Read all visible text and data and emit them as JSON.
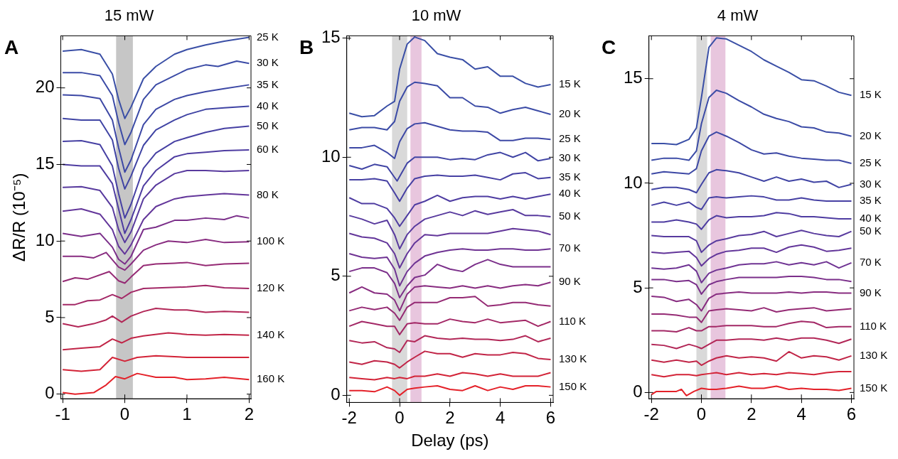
{
  "chart_data": [
    {
      "type": "line",
      "title": "15 mW",
      "ylabel": "ΔR/R (10⁻⁵)",
      "annotations": [
        "A"
      ],
      "xlim": [
        -1.03,
        2.03
      ],
      "ylim": [
        -0.3,
        23.4
      ],
      "xticks": [
        -1,
        0,
        1,
        2
      ],
      "yticks": [
        0,
        5,
        10,
        15,
        20
      ],
      "bands": [
        {
          "axis": "x",
          "from": -0.14,
          "to": 0.13,
          "color": "#a0a0a0"
        }
      ],
      "x": [
        -1,
        -0.7,
        -0.4,
        -0.2,
        -0.1,
        0,
        0.1,
        0.3,
        0.5,
        0.8,
        1,
        1.3,
        1.6,
        2
      ],
      "series": [
        {
          "name": "25 K",
          "color": "#3a4fa6",
          "values": [
            22.4,
            22.5,
            22.2,
            20.9,
            19.25,
            18.0,
            18.75,
            20.6,
            21.4,
            22.2,
            22.5,
            22.8,
            23.05,
            23.3
          ]
        },
        {
          "name": "30 K",
          "color": "#3b4ba6",
          "x": [
            -1,
            -0.7,
            -0.4,
            -0.2,
            -0.1,
            0,
            0.1,
            0.3,
            0.5,
            0.8,
            1,
            1.3,
            1.5,
            1.8,
            2
          ],
          "values": [
            21.0,
            21.0,
            20.8,
            19.5,
            17.75,
            16.3,
            17.1,
            19.25,
            20.2,
            20.8,
            21.2,
            21.5,
            21.4,
            21.75,
            21.6
          ]
        },
        {
          "name": "35 K",
          "color": "#3d48a5",
          "values": [
            19.55,
            19.5,
            19.3,
            17.9,
            16.1,
            14.5,
            15.3,
            17.6,
            18.6,
            19.25,
            19.5,
            19.75,
            19.95,
            20.2
          ]
        },
        {
          "name": "40 K",
          "color": "#4044a4",
          "values": [
            18.0,
            17.9,
            17.9,
            16.6,
            14.75,
            13.4,
            14.25,
            16.25,
            17.25,
            17.9,
            18.25,
            18.6,
            18.7,
            18.8
          ]
        },
        {
          "name": "50 K",
          "color": "#4640a3",
          "values": [
            16.5,
            16.55,
            16.3,
            14.9,
            13.1,
            11.5,
            12.4,
            14.75,
            15.75,
            16.5,
            16.75,
            17.1,
            17.35,
            17.5
          ]
        },
        {
          "name": "60 K",
          "color": "#4e3ca1",
          "values": [
            15.0,
            14.9,
            14.9,
            13.75,
            12.1,
            10.5,
            11.4,
            13.6,
            14.6,
            15.5,
            15.7,
            15.8,
            15.9,
            15.95
          ]
        },
        {
          "color": "#583a9e",
          "values": [
            13.5,
            13.55,
            13.3,
            12.2,
            10.75,
            9.9,
            10.6,
            12.75,
            13.65,
            14.4,
            14.6,
            14.6,
            14.55,
            14.6
          ]
        },
        {
          "name": "80 K",
          "color": "#63369a",
          "values": [
            11.95,
            12.1,
            11.75,
            10.75,
            9.65,
            9.15,
            9.75,
            11.4,
            12.25,
            12.75,
            12.9,
            13.0,
            13.1,
            13.0
          ]
        },
        {
          "color": "#7b2f8a",
          "x": [
            -1,
            -0.7,
            -0.4,
            -0.2,
            -0.1,
            0,
            0.1,
            0.3,
            0.5,
            0.8,
            1,
            1.3,
            1.6,
            1.8,
            2
          ],
          "values": [
            10.5,
            10.3,
            10.5,
            9.6,
            8.8,
            8.5,
            9.0,
            10.75,
            10.9,
            11.35,
            11.35,
            11.5,
            11.4,
            11.65,
            11.5
          ]
        },
        {
          "name": "100 K",
          "color": "#882c80",
          "x": [
            -1,
            -0.7,
            -0.5,
            -0.3,
            -0.1,
            0,
            0.1,
            0.3,
            0.5,
            0.7,
            1,
            1.3,
            1.6,
            2
          ],
          "values": [
            9.0,
            9.0,
            8.9,
            9.25,
            8.3,
            8.1,
            8.5,
            9.4,
            9.75,
            10.0,
            9.9,
            10.1,
            9.9,
            9.95
          ]
        },
        {
          "color": "#952a74",
          "x": [
            -1,
            -0.8,
            -0.6,
            -0.25,
            -0.1,
            0,
            0.1,
            0.3,
            0.5,
            0.8,
            1,
            1.3,
            1.6,
            2
          ],
          "values": [
            7.35,
            7.6,
            7.5,
            8.0,
            7.4,
            7.25,
            7.65,
            8.4,
            8.5,
            8.55,
            8.6,
            8.4,
            8.5,
            8.55
          ]
        },
        {
          "name": "120 K",
          "color": "#a32866",
          "x": [
            -1,
            -0.8,
            -0.6,
            -0.4,
            -0.2,
            -0.05,
            0.1,
            0.3,
            0.6,
            1,
            1.3,
            1.6,
            2
          ],
          "values": [
            5.85,
            5.85,
            6.1,
            6.15,
            6.5,
            6.25,
            6.65,
            6.9,
            6.95,
            7.0,
            7.1,
            6.95,
            6.9
          ]
        },
        {
          "color": "#b22757",
          "x": [
            -1,
            -0.75,
            -0.5,
            -0.3,
            -0.2,
            -0.05,
            0.1,
            0.3,
            0.5,
            0.8,
            1,
            1.3,
            1.6,
            2
          ],
          "values": [
            4.6,
            4.4,
            4.6,
            4.85,
            5.1,
            4.7,
            5.1,
            5.4,
            5.6,
            5.5,
            5.5,
            5.35,
            5.4,
            5.35
          ]
        },
        {
          "name": "140 K",
          "color": "#c12547",
          "x": [
            -1,
            -0.7,
            -0.4,
            -0.2,
            -0.05,
            0.1,
            0.3,
            0.7,
            1,
            1.3,
            1.6,
            2
          ],
          "values": [
            2.9,
            3.0,
            3.1,
            3.6,
            3.35,
            3.65,
            3.8,
            4.0,
            3.9,
            3.85,
            3.9,
            3.85
          ]
        },
        {
          "color": "#d32337",
          "x": [
            -1,
            -0.7,
            -0.4,
            -0.2,
            0,
            0.2,
            0.5,
            0.8,
            1,
            1.3,
            1.6,
            2
          ],
          "values": [
            1.6,
            1.5,
            1.6,
            2.4,
            2.15,
            2.4,
            2.5,
            2.45,
            2.4,
            2.4,
            2.4,
            2.4
          ]
        },
        {
          "name": "160 K",
          "color": "#e42129",
          "x": [
            -1,
            -0.8,
            -0.5,
            -0.3,
            -0.15,
            0,
            0.2,
            0.5,
            0.8,
            1,
            1.3,
            1.6,
            2
          ],
          "values": [
            0.1,
            0.0,
            0.1,
            0.6,
            1.15,
            1.0,
            1.35,
            1.1,
            1.1,
            0.95,
            1.0,
            1.1,
            0.95
          ]
        }
      ]
    },
    {
      "type": "line",
      "title": "10 mW",
      "xlabel": "Delay (ps)",
      "annotations": [
        "B"
      ],
      "xlim": [
        -2.1,
        6.1
      ],
      "ylim": [
        -0.3,
        15.1
      ],
      "xticks": [
        -2,
        0,
        2,
        4,
        6
      ],
      "yticks": [
        0,
        5,
        10,
        15
      ],
      "bands": [
        {
          "axis": "x",
          "from": -0.3,
          "to": 0.3,
          "color": "#c0c0c0"
        },
        {
          "axis": "x",
          "from": 0.43,
          "to": 0.87,
          "color": "#d9a0c8"
        }
      ],
      "x": [
        -2,
        -1.5,
        -1,
        -0.5,
        -0.2,
        0,
        0.3,
        0.6,
        1,
        1.5,
        2,
        2.5,
        3,
        3.5,
        4,
        4.5,
        5,
        5.5,
        6
      ],
      "series": [
        {
          "name": "15 K",
          "color": "#3a4fa6",
          "values": [
            11.85,
            11.7,
            11.75,
            12.15,
            12.35,
            13.7,
            14.75,
            15.05,
            14.9,
            14.35,
            14.2,
            14.1,
            13.7,
            13.8,
            13.4,
            13.4,
            13.1,
            12.95,
            13.05
          ]
        },
        {
          "name": "20 K",
          "color": "#3b4ba6",
          "values": [
            11.15,
            11.25,
            11.25,
            11.15,
            11.5,
            12.35,
            12.95,
            13.15,
            13.1,
            13.0,
            12.5,
            12.5,
            12.15,
            12.1,
            11.85,
            12.0,
            12.1,
            11.95,
            11.8
          ]
        },
        {
          "name": "25 K",
          "color": "#3d48a5",
          "values": [
            10.4,
            10.4,
            10.5,
            10.2,
            9.95,
            10.65,
            11.2,
            11.4,
            11.45,
            11.3,
            11.15,
            11.1,
            11.1,
            11.05,
            10.7,
            10.7,
            10.8,
            10.8,
            10.75
          ]
        },
        {
          "name": "30 K",
          "color": "#4044a4",
          "x": [
            -2,
            -1.5,
            -1,
            -0.5,
            -0.2,
            -0.1,
            0.3,
            0.6,
            1,
            1.5,
            2,
            2.5,
            3,
            3.5,
            4,
            4.5,
            5,
            5.5,
            6
          ],
          "values": [
            9.65,
            9.5,
            9.7,
            9.6,
            9.15,
            9.0,
            9.75,
            10.0,
            10.0,
            10.0,
            9.9,
            9.95,
            9.9,
            10.1,
            10.2,
            10.0,
            10.2,
            9.85,
            9.95
          ]
        },
        {
          "name": "35 K",
          "color": "#4640a3",
          "values": [
            9.05,
            9.05,
            9.1,
            9.0,
            8.5,
            8.15,
            8.7,
            9.1,
            9.2,
            9.25,
            9.2,
            9.2,
            9.25,
            9.15,
            9.05,
            9.3,
            9.35,
            9.1,
            9.15
          ]
        },
        {
          "name": "40 K",
          "color": "#4e3ca1",
          "values": [
            8.3,
            8.05,
            8.05,
            7.85,
            7.45,
            7.1,
            7.55,
            8.0,
            8.15,
            8.4,
            8.15,
            8.3,
            8.35,
            8.35,
            8.25,
            8.35,
            8.25,
            8.35,
            8.45
          ]
        },
        {
          "name": "50 K",
          "color": "#583a9e",
          "values": [
            7.55,
            7.4,
            7.2,
            7.35,
            6.75,
            6.15,
            6.75,
            7.1,
            7.4,
            7.55,
            7.7,
            7.55,
            7.75,
            7.6,
            7.7,
            7.8,
            7.55,
            7.55,
            7.5
          ]
        },
        {
          "color": "#63369a",
          "values": [
            6.8,
            6.65,
            6.6,
            6.4,
            5.95,
            5.35,
            5.95,
            6.4,
            6.75,
            6.7,
            6.8,
            6.8,
            6.8,
            6.8,
            6.9,
            7.0,
            6.95,
            6.9,
            6.75
          ]
        },
        {
          "name": "70 K",
          "color": "#6f3393",
          "values": [
            5.95,
            5.8,
            5.75,
            5.8,
            5.3,
            4.6,
            5.2,
            5.55,
            5.85,
            6.0,
            6.1,
            6.15,
            6.1,
            6.1,
            6.15,
            6.15,
            6.1,
            6.1,
            6.15
          ]
        },
        {
          "color": "#7b2f8a",
          "values": [
            5.2,
            5.35,
            5.35,
            5.15,
            4.7,
            4.1,
            4.6,
            4.95,
            5.05,
            5.5,
            5.3,
            5.2,
            5.5,
            5.7,
            5.5,
            5.4,
            5.4,
            5.4,
            5.4
          ]
        },
        {
          "name": "90 K",
          "color": "#882c80",
          "values": [
            4.3,
            4.55,
            4.3,
            4.25,
            4.0,
            3.55,
            4.25,
            4.55,
            4.6,
            4.55,
            4.5,
            4.6,
            4.5,
            4.6,
            4.5,
            4.6,
            4.65,
            4.6,
            4.75
          ]
        },
        {
          "color": "#952a74",
          "values": [
            3.55,
            3.7,
            3.6,
            3.7,
            3.45,
            3.15,
            3.7,
            3.9,
            3.9,
            3.9,
            4.1,
            4.1,
            4.15,
            3.75,
            3.8,
            3.9,
            3.9,
            3.8,
            3.75
          ]
        },
        {
          "name": "110 K",
          "color": "#a32866",
          "values": [
            2.9,
            3.1,
            3.0,
            2.9,
            2.9,
            2.55,
            3.0,
            3.05,
            3.0,
            3.0,
            3.2,
            3.1,
            3.05,
            3.2,
            3.05,
            3.1,
            3.15,
            2.9,
            3.1
          ]
        },
        {
          "color": "#b22757",
          "values": [
            2.3,
            2.2,
            2.25,
            2.0,
            1.95,
            1.8,
            2.3,
            2.25,
            2.5,
            2.4,
            2.35,
            2.4,
            2.35,
            2.35,
            2.3,
            2.35,
            2.5,
            2.25,
            2.4
          ]
        },
        {
          "name": "130 K",
          "color": "#c12547",
          "values": [
            1.4,
            1.3,
            1.45,
            1.4,
            1.3,
            1.15,
            1.4,
            1.6,
            1.85,
            1.75,
            1.75,
            1.6,
            1.75,
            1.7,
            1.7,
            1.8,
            1.75,
            1.55,
            1.5
          ]
        },
        {
          "color": "#d32337",
          "values": [
            0.75,
            0.7,
            0.65,
            0.75,
            0.7,
            0.75,
            0.7,
            0.8,
            0.8,
            0.9,
            0.8,
            0.95,
            0.9,
            0.8,
            0.9,
            0.8,
            0.8,
            0.8,
            0.95
          ]
        },
        {
          "name": "150 K",
          "color": "#e42129",
          "values": [
            0.2,
            0.2,
            0.15,
            0.35,
            0.2,
            0.0,
            0.25,
            0.3,
            0.35,
            0.4,
            0.25,
            0.2,
            0.4,
            0.2,
            0.35,
            0.25,
            0.4,
            0.4,
            0.35
          ]
        }
      ]
    },
    {
      "type": "line",
      "title": "4 mW",
      "annotations": [
        "C"
      ],
      "xlim": [
        -2.1,
        6.1
      ],
      "ylim": [
        -0.3,
        17.05
      ],
      "xticks": [
        -2,
        0,
        2,
        4,
        6
      ],
      "yticks": [
        0,
        5,
        10,
        15
      ],
      "bands": [
        {
          "axis": "x",
          "from": -0.2,
          "to": 0.23,
          "color": "#c0c0c0"
        },
        {
          "axis": "x",
          "from": 0.37,
          "to": 0.96,
          "color": "#d9a0c8"
        }
      ],
      "x": [
        -2,
        -1.5,
        -1,
        -0.5,
        -0.2,
        0,
        0.3,
        0.6,
        1,
        1.5,
        2,
        2.5,
        3,
        3.5,
        4,
        4.5,
        5,
        5.5,
        6
      ],
      "series": [
        {
          "name": "15 K",
          "color": "#3a4fa6",
          "values": [
            11.9,
            11.9,
            11.85,
            12.1,
            12.65,
            14.1,
            16.5,
            16.95,
            16.9,
            16.6,
            16.3,
            15.9,
            15.6,
            15.3,
            14.95,
            14.9,
            14.65,
            14.35,
            14.2
          ]
        },
        {
          "name": "20 K",
          "color": "#3b4ba6",
          "values": [
            11.1,
            11.2,
            11.2,
            11.1,
            11.55,
            12.85,
            14.1,
            14.45,
            14.3,
            13.95,
            13.65,
            13.3,
            13.1,
            12.95,
            12.7,
            12.65,
            12.45,
            12.4,
            12.25
          ]
        },
        {
          "name": "25 K",
          "color": "#3d48a5",
          "values": [
            10.45,
            10.55,
            10.5,
            10.45,
            10.7,
            11.55,
            12.25,
            12.45,
            12.25,
            11.95,
            11.6,
            11.4,
            11.45,
            11.3,
            11.2,
            11.15,
            11.1,
            11.1,
            10.95
          ]
        },
        {
          "name": "30 K",
          "color": "#4044a4",
          "values": [
            9.7,
            9.8,
            9.8,
            9.7,
            9.55,
            9.95,
            10.5,
            10.65,
            10.6,
            10.5,
            10.3,
            10.1,
            10.3,
            10.1,
            10.2,
            10.05,
            10.1,
            9.8,
            9.95
          ]
        },
        {
          "name": "35 K",
          "color": "#4640a3",
          "values": [
            8.95,
            9.1,
            8.95,
            9.1,
            8.85,
            8.75,
            9.3,
            9.35,
            9.3,
            9.35,
            9.4,
            9.35,
            9.2,
            9.2,
            9.3,
            9.2,
            9.15,
            9.15,
            9.15
          ]
        },
        {
          "name": "40 K",
          "color": "#4e3ca1",
          "values": [
            8.15,
            8.15,
            8.25,
            8.15,
            8.05,
            7.8,
            8.25,
            8.45,
            8.35,
            8.4,
            8.4,
            8.45,
            8.6,
            8.55,
            8.4,
            8.4,
            8.35,
            8.3,
            8.3
          ]
        },
        {
          "name": "50 K",
          "color": "#583a9e",
          "values": [
            7.5,
            7.45,
            7.45,
            7.45,
            7.25,
            6.7,
            7.05,
            7.25,
            7.35,
            7.5,
            7.55,
            7.7,
            7.45,
            7.6,
            7.75,
            7.6,
            7.5,
            7.45,
            7.7
          ]
        },
        {
          "color": "#63369a",
          "values": [
            6.7,
            6.65,
            6.7,
            6.75,
            6.45,
            6.05,
            6.4,
            6.6,
            6.75,
            6.8,
            6.9,
            6.9,
            6.7,
            6.95,
            7.05,
            6.95,
            6.75,
            6.8,
            6.9
          ]
        },
        {
          "name": "70 K",
          "color": "#6f3393",
          "values": [
            5.95,
            5.9,
            5.95,
            6.1,
            5.8,
            5.25,
            5.7,
            5.85,
            5.95,
            6.1,
            6.15,
            6.15,
            6.25,
            6.1,
            6.2,
            6.1,
            6.25,
            5.95,
            6.2
          ]
        },
        {
          "color": "#7b2f8a",
          "values": [
            5.4,
            5.4,
            5.3,
            5.35,
            5.15,
            4.7,
            5.15,
            5.3,
            5.4,
            5.5,
            5.5,
            5.5,
            5.5,
            5.55,
            5.55,
            5.5,
            5.4,
            5.4,
            5.3
          ]
        },
        {
          "name": "90 K",
          "color": "#882c80",
          "values": [
            4.6,
            4.55,
            4.35,
            4.45,
            4.2,
            3.9,
            4.5,
            4.7,
            4.75,
            4.8,
            4.75,
            4.75,
            4.75,
            4.8,
            4.75,
            4.8,
            4.8,
            4.75,
            4.75
          ]
        },
        {
          "color": "#952a74",
          "values": [
            3.75,
            3.75,
            3.7,
            3.6,
            3.6,
            3.35,
            3.9,
            3.95,
            4.0,
            3.95,
            3.9,
            4.05,
            3.85,
            3.95,
            4.0,
            4.05,
            3.9,
            3.95,
            4.0
          ]
        },
        {
          "name": "110 K",
          "color": "#a32866",
          "values": [
            2.95,
            2.95,
            2.9,
            3.1,
            2.95,
            2.95,
            3.15,
            3.15,
            3.2,
            3.2,
            3.2,
            3.15,
            3.15,
            3.3,
            3.4,
            3.35,
            3.1,
            3.15,
            3.15
          ]
        },
        {
          "color": "#b22757",
          "values": [
            2.3,
            2.25,
            2.1,
            2.3,
            2.2,
            2.1,
            2.3,
            2.5,
            2.5,
            2.55,
            2.55,
            2.5,
            2.6,
            2.5,
            2.6,
            2.6,
            2.5,
            2.35,
            2.55
          ]
        },
        {
          "name": "130 K",
          "color": "#c12547",
          "values": [
            1.55,
            1.45,
            1.55,
            1.45,
            1.5,
            1.3,
            1.5,
            1.65,
            1.75,
            1.65,
            1.7,
            1.65,
            1.5,
            1.95,
            1.65,
            1.75,
            1.7,
            1.55,
            1.75
          ]
        },
        {
          "color": "#d32337",
          "values": [
            0.85,
            0.75,
            0.85,
            0.85,
            0.8,
            0.85,
            0.9,
            0.95,
            0.85,
            0.95,
            0.85,
            0.9,
            0.85,
            0.95,
            0.9,
            0.85,
            0.95,
            1.0,
            1.0
          ]
        },
        {
          "name": "150 K",
          "color": "#e42129",
          "x": [
            -2,
            -1.8,
            -1.5,
            -1,
            -0.8,
            -0.6,
            -0.3,
            0,
            0.3,
            0.6,
            1,
            1.5,
            2,
            2.5,
            3,
            3.5,
            4,
            4.5,
            5,
            5.5,
            6
          ],
          "values": [
            -0.1,
            0.05,
            0.05,
            0.05,
            0.15,
            -0.15,
            0.05,
            0.2,
            0.15,
            0.15,
            0.2,
            0.3,
            0.2,
            0.2,
            0.3,
            0.15,
            0.2,
            0.15,
            0.15,
            0.1,
            0.2
          ]
        }
      ]
    }
  ]
}
